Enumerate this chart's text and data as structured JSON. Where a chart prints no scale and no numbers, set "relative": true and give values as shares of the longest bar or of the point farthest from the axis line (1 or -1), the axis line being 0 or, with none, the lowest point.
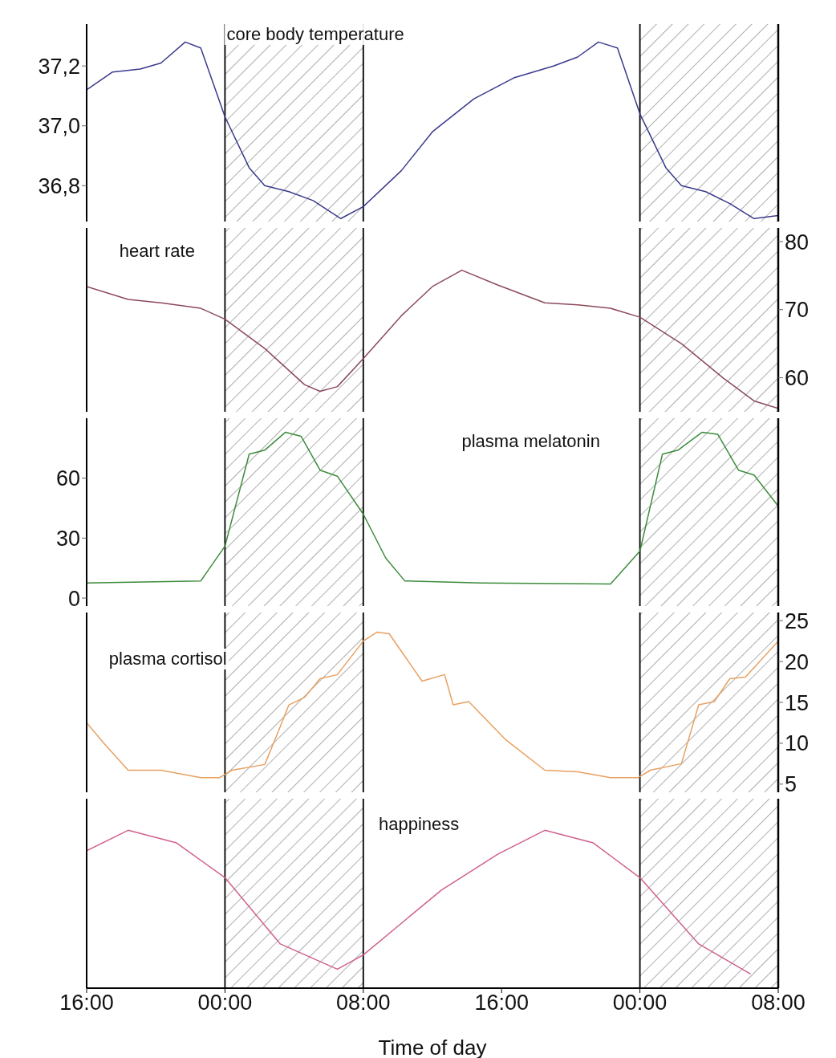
{
  "chart_data": [
    {
      "type": "line",
      "xlim": [
        "2000-01-01T16:00",
        "2000-01-03T08:00"
      ],
      "ylim": [
        36.68,
        37.34
      ],
      "yticks": [
        {
          "value": 36.8,
          "label": "36,8"
        },
        {
          "value": 37.0,
          "label": "37,0"
        },
        {
          "value": 37.2,
          "label": "37,2"
        }
      ],
      "tick_labels": "y",
      "marker": "none",
      "line_style": "solid",
      "bands": [
        {
          "axis": "x",
          "from": "2000-01-02T00:00",
          "to": "2000-01-02T08:00",
          "color": "#999999"
        },
        {
          "axis": "x",
          "from": "2000-01-03T00:00",
          "to": "2000-01-03T08:00",
          "color": "#999999"
        }
      ],
      "ref_lines": [
        {
          "axis": "x",
          "value": "2000-01-02T00:00",
          "color": "#000000"
        },
        {
          "axis": "x",
          "value": "2000-01-02T08:00",
          "color": "#000000"
        },
        {
          "axis": "x",
          "value": "2000-01-03T00:00",
          "color": "#000000"
        }
      ],
      "series": [
        {
          "name": "core body temperature",
          "color": "#3a3a8c",
          "x": [
            "2000-01-01T16:00",
            "2000-01-01T17:30",
            "2000-01-01T19:06",
            "2000-01-01T20:18",
            "2000-01-01T21:42",
            "2000-01-01T22:36",
            "2000-01-02T00:00",
            "2000-01-02T01:24",
            "2000-01-02T02:18",
            "2000-01-02T03:42",
            "2000-01-02T05:06",
            "2000-01-02T06:42",
            "2000-01-02T08:00",
            "2000-01-02T10:12",
            "2000-01-02T12:00",
            "2000-01-02T14:24",
            "2000-01-02T16:42",
            "2000-01-02T19:00",
            "2000-01-02T20:24",
            "2000-01-02T21:36",
            "2000-01-02T22:42",
            "2000-01-03T00:00",
            "2000-01-03T01:30",
            "2000-01-03T02:24",
            "2000-01-03T03:48",
            "2000-01-03T05:12",
            "2000-01-03T06:36",
            "2000-01-03T08:00"
          ],
          "values": [
            37.12,
            37.18,
            37.19,
            37.21,
            37.28,
            37.26,
            37.03,
            36.86,
            36.8,
            36.78,
            36.75,
            36.69,
            36.73,
            36.85,
            36.98,
            37.09,
            37.16,
            37.2,
            37.23,
            37.28,
            37.26,
            37.04,
            36.86,
            36.8,
            36.78,
            36.74,
            36.69,
            36.7
          ]
        }
      ]
    },
    {
      "type": "line",
      "xlim": [
        "2000-01-01T16:00",
        "2000-01-03T08:00"
      ],
      "y2lim": [
        55,
        82
      ],
      "y2ticks": [
        60,
        70,
        80
      ],
      "tick_labels": "y",
      "marker": "none",
      "line_style": "solid",
      "bands": [
        {
          "axis": "x",
          "from": "2000-01-02T00:00",
          "to": "2000-01-02T08:00",
          "color": "#999999"
        },
        {
          "axis": "x",
          "from": "2000-01-03T00:00",
          "to": "2000-01-03T08:00",
          "color": "#999999"
        }
      ],
      "ref_lines": [
        {
          "axis": "x",
          "value": "2000-01-02T00:00",
          "color": "#000000"
        },
        {
          "axis": "x",
          "value": "2000-01-02T08:00",
          "color": "#000000"
        },
        {
          "axis": "x",
          "value": "2000-01-03T00:00",
          "color": "#000000"
        }
      ],
      "series": [
        {
          "name": "heart rate",
          "color": "#8b4a5a",
          "axis": "y2",
          "x": [
            "2000-01-01T16:00",
            "2000-01-01T18:24",
            "2000-01-01T20:18",
            "2000-01-01T22:36",
            "2000-01-02T00:00",
            "2000-01-02T02:18",
            "2000-01-02T04:36",
            "2000-01-02T05:30",
            "2000-01-02T06:30",
            "2000-01-02T08:00",
            "2000-01-02T10:12",
            "2000-01-02T12:00",
            "2000-01-02T13:42",
            "2000-01-02T15:48",
            "2000-01-02T18:30",
            "2000-01-02T20:24",
            "2000-01-02T22:18",
            "2000-01-03T00:00",
            "2000-01-03T02:24",
            "2000-01-03T04:48",
            "2000-01-03T06:36",
            "2000-01-03T08:00"
          ],
          "values": [
            73.4,
            71.5,
            71,
            70.2,
            68.6,
            64.3,
            59,
            58,
            58.7,
            62.8,
            69.1,
            73.4,
            75.8,
            73.6,
            71,
            70.7,
            70.2,
            68.9,
            65,
            60,
            56.6,
            55.5
          ]
        }
      ]
    },
    {
      "type": "line",
      "xlim": [
        "2000-01-01T16:00",
        "2000-01-03T08:00"
      ],
      "ylim": [
        -4,
        90
      ],
      "yticks": [
        0,
        30,
        60
      ],
      "tick_labels": "y",
      "marker": "none",
      "line_style": "solid",
      "bands": [
        {
          "axis": "x",
          "from": "2000-01-02T00:00",
          "to": "2000-01-02T08:00",
          "color": "#999999"
        },
        {
          "axis": "x",
          "from": "2000-01-03T00:00",
          "to": "2000-01-03T08:00",
          "color": "#999999"
        }
      ],
      "ref_lines": [
        {
          "axis": "x",
          "value": "2000-01-02T00:00",
          "color": "#000000"
        },
        {
          "axis": "x",
          "value": "2000-01-02T08:00",
          "color": "#000000"
        },
        {
          "axis": "x",
          "value": "2000-01-03T00:00",
          "color": "#000000"
        }
      ],
      "series": [
        {
          "name": "plasma melatonin",
          "color": "#3c8c3c",
          "x": [
            "2000-01-01T16:00",
            "2000-01-01T22:36",
            "2000-01-02T00:00",
            "2000-01-02T01:24",
            "2000-01-02T02:18",
            "2000-01-02T03:30",
            "2000-01-02T04:24",
            "2000-01-02T05:30",
            "2000-01-02T06:30",
            "2000-01-02T08:00",
            "2000-01-02T09:18",
            "2000-01-02T10:24",
            "2000-01-02T14:48",
            "2000-01-02T22:18",
            "2000-01-03T00:00",
            "2000-01-03T01:18",
            "2000-01-03T02:12",
            "2000-01-03T03:36",
            "2000-01-03T04:30",
            "2000-01-03T05:42",
            "2000-01-03T06:36",
            "2000-01-03T08:00"
          ],
          "values": [
            7.5,
            8.6,
            26,
            72,
            74,
            83,
            81,
            64,
            61,
            42,
            20,
            8.6,
            7.5,
            7,
            23.5,
            72,
            74,
            83,
            82,
            64,
            61.6,
            46
          ]
        }
      ]
    },
    {
      "type": "line",
      "xlim": [
        "2000-01-01T16:00",
        "2000-01-03T08:00"
      ],
      "y2lim": [
        4,
        26
      ],
      "y2ticks": [
        5,
        10,
        15,
        20,
        25
      ],
      "tick_labels": "y",
      "marker": "none",
      "line_style": "solid",
      "bands": [
        {
          "axis": "x",
          "from": "2000-01-02T00:00",
          "to": "2000-01-02T08:00",
          "color": "#999999"
        },
        {
          "axis": "x",
          "from": "2000-01-03T00:00",
          "to": "2000-01-03T08:00",
          "color": "#999999"
        }
      ],
      "ref_lines": [
        {
          "axis": "x",
          "value": "2000-01-02T00:00",
          "color": "#000000"
        },
        {
          "axis": "x",
          "value": "2000-01-02T08:00",
          "color": "#000000"
        },
        {
          "axis": "x",
          "value": "2000-01-03T00:00",
          "color": "#000000"
        }
      ],
      "series": [
        {
          "name": "plasma cortisol",
          "color": "#e8a060",
          "axis": "y2",
          "x": [
            "2000-01-01T16:00",
            "2000-01-01T17:00",
            "2000-01-01T18:24",
            "2000-01-01T20:18",
            "2000-01-01T22:36",
            "2000-01-01T23:42",
            "2000-01-02T00:24",
            "2000-01-02T02:18",
            "2000-01-02T03:00",
            "2000-01-02T03:42",
            "2000-01-02T04:36",
            "2000-01-02T05:30",
            "2000-01-02T06:30",
            "2000-01-02T08:00",
            "2000-01-02T08:48",
            "2000-01-02T09:30",
            "2000-01-02T11:24",
            "2000-01-02T12:42",
            "2000-01-02T13:12",
            "2000-01-02T14:06",
            "2000-01-02T16:12",
            "2000-01-02T18:30",
            "2000-01-02T20:24",
            "2000-01-02T22:18",
            "2000-01-02T23:54",
            "2000-01-03T00:36",
            "2000-01-03T02:24",
            "2000-01-03T03:24",
            "2000-01-03T04:18",
            "2000-01-03T05:12",
            "2000-01-03T06:06",
            "2000-01-03T08:00"
          ],
          "values": [
            12.5,
            10,
            6.7,
            6.7,
            5.8,
            5.8,
            6.7,
            7.4,
            11,
            14.7,
            15.6,
            17.9,
            18.4,
            22.5,
            23.6,
            23.4,
            17.6,
            18.4,
            14.7,
            15.1,
            10.5,
            6.7,
            6.5,
            5.8,
            5.8,
            6.7,
            7.5,
            14.7,
            15.1,
            17.9,
            18.1,
            22.5
          ]
        }
      ]
    },
    {
      "type": "line",
      "relative": true,
      "xlim": [
        "2000-01-01T16:00",
        "2000-01-03T08:00"
      ],
      "xticks": [
        {
          "value": "2000-01-01T16:00",
          "label": "16:00"
        },
        {
          "value": "2000-01-02T00:00",
          "label": "00:00"
        },
        {
          "value": "2000-01-02T08:00",
          "label": "08:00"
        },
        {
          "value": "2000-01-02T16:00",
          "label": "16:00"
        },
        {
          "value": "2000-01-03T00:00",
          "label": "00:00"
        },
        {
          "value": "2000-01-03T08:00",
          "label": "08:00"
        }
      ],
      "xlabel": "Time of day",
      "marker": "none",
      "line_style": "solid",
      "bands": [
        {
          "axis": "x",
          "from": "2000-01-02T00:00",
          "to": "2000-01-02T08:00",
          "color": "#999999"
        },
        {
          "axis": "x",
          "from": "2000-01-03T00:00",
          "to": "2000-01-03T08:00",
          "color": "#999999"
        }
      ],
      "ref_lines": [
        {
          "axis": "x",
          "value": "2000-01-02T00:00",
          "color": "#000000"
        },
        {
          "axis": "x",
          "value": "2000-01-02T08:00",
          "color": "#000000"
        },
        {
          "axis": "x",
          "value": "2000-01-03T00:00",
          "color": "#000000"
        }
      ],
      "series": [
        {
          "name": "happiness",
          "color": "#d06090",
          "x": [
            "2000-01-01T16:00",
            "2000-01-01T18:24",
            "2000-01-01T21:12",
            "2000-01-02T00:00",
            "2000-01-02T03:12",
            "2000-01-02T06:30",
            "2000-01-02T08:00",
            "2000-01-02T12:30",
            "2000-01-02T15:48",
            "2000-01-02T18:30",
            "2000-01-02T21:18",
            "2000-01-03T00:00",
            "2000-01-03T03:24",
            "2000-01-03T06:24"
          ],
          "values": [
            0.87,
            1,
            0.92,
            0.7,
            0.28,
            0.12,
            0.21,
            0.62,
            0.85,
            1,
            0.92,
            0.7,
            0.28,
            0.09
          ]
        }
      ]
    }
  ]
}
